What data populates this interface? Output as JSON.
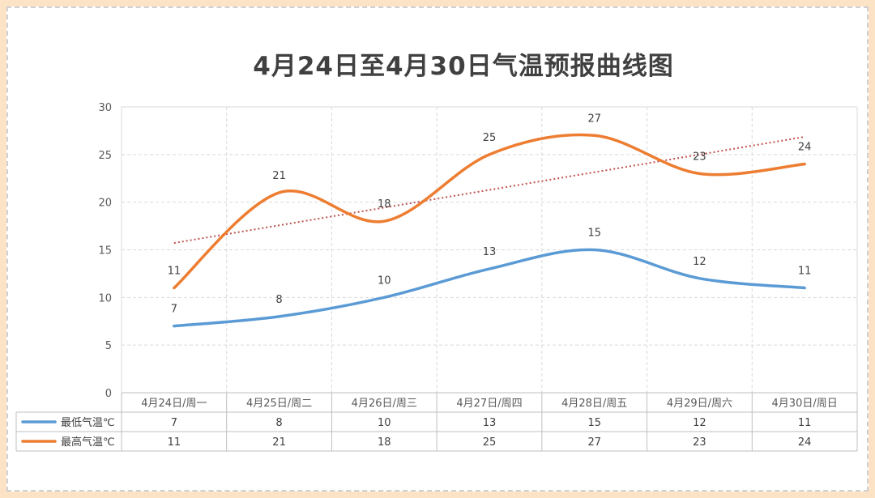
{
  "chart_data": {
    "type": "line",
    "title": "4月24日至4月30日气温预报曲线图",
    "categories": [
      "4月24日/周一",
      "4月25日/周二",
      "4月26日/周三",
      "4月27日/周四",
      "4月28日/周五",
      "4月29日/周六",
      "4月30日/周日"
    ],
    "series": [
      {
        "name": "最低气温℃",
        "values": [
          7,
          8,
          10,
          13,
          15,
          12,
          11
        ],
        "color": "#5b9bd5"
      },
      {
        "name": "最高气温℃",
        "values": [
          11,
          21,
          18,
          25,
          27,
          23,
          24
        ],
        "color": "#ed7d31"
      }
    ],
    "trendline": {
      "series": "最高气温℃",
      "type": "linear",
      "color": "#c0504d",
      "style": "dotted"
    },
    "ylim": [
      0,
      30
    ],
    "yticks": [
      0,
      5,
      10,
      15,
      20,
      25,
      30
    ],
    "grid": true,
    "smooth": true,
    "data_labels": true,
    "data_table": true,
    "legend": "data-table"
  },
  "colors": {
    "page_background": "#fde3c6",
    "grid": "#d9d9d9"
  }
}
